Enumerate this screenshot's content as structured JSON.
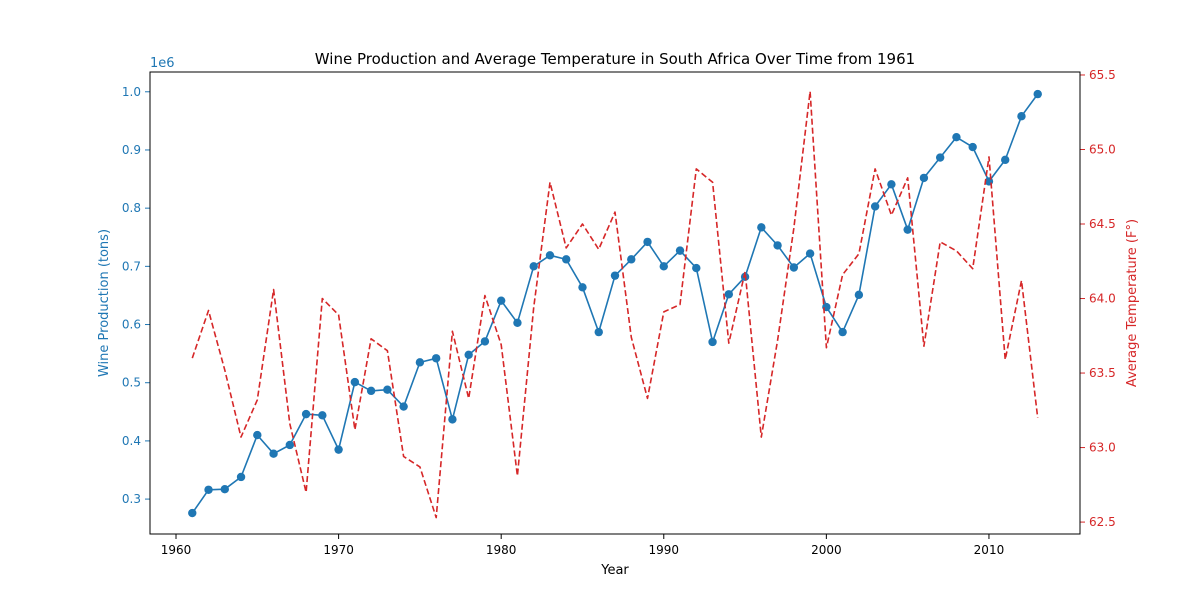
{
  "chart_data": {
    "type": "line",
    "title": "Wine Production and Average Temperature in South Africa Over Time from 1961",
    "xlabel": "Year",
    "ylabel_left": "Wine Production (tons)",
    "ylabel_right": "Average Temperature (F°)",
    "left_offset_text": "1e6",
    "xlim": [
      1958.4,
      2015.6
    ],
    "ylim_left": [
      240000,
      1034000
    ],
    "ylim_right": [
      62.42,
      65.52
    ],
    "x_ticks": [
      1960,
      1970,
      1980,
      1990,
      2000,
      2010
    ],
    "left_ticks": [
      0.3,
      0.4,
      0.5,
      0.6,
      0.7,
      0.8,
      0.9,
      1.0
    ],
    "left_tick_labels": [
      "0.3",
      "0.4",
      "0.5",
      "0.6",
      "0.7",
      "0.8",
      "0.9",
      "1.0"
    ],
    "right_ticks": [
      62.5,
      63.0,
      63.5,
      64.0,
      64.5,
      65.0,
      65.5
    ],
    "right_tick_labels": [
      "62.5",
      "63.0",
      "63.5",
      "64.0",
      "64.5",
      "65.0",
      "65.5"
    ],
    "x": [
      1961,
      1962,
      1963,
      1964,
      1965,
      1966,
      1967,
      1968,
      1969,
      1970,
      1971,
      1972,
      1973,
      1974,
      1975,
      1976,
      1977,
      1978,
      1979,
      1980,
      1981,
      1982,
      1983,
      1984,
      1985,
      1986,
      1987,
      1988,
      1989,
      1990,
      1991,
      1992,
      1993,
      1994,
      1995,
      1996,
      1997,
      1998,
      1999,
      2000,
      2001,
      2002,
      2003,
      2004,
      2005,
      2006,
      2007,
      2008,
      2009,
      2010,
      2011,
      2012,
      2013
    ],
    "series": [
      {
        "axis": "left",
        "color": "#1f77b4",
        "style": "solid-with-markers",
        "values": [
          276000,
          316000,
          317000,
          338000,
          410000,
          378000,
          393000,
          446000,
          444000,
          385000,
          501000,
          486000,
          488000,
          459000,
          535000,
          542000,
          437000,
          548000,
          571000,
          641000,
          603000,
          700000,
          719000,
          712000,
          664000,
          587000,
          684000,
          712000,
          742000,
          700000,
          727000,
          697000,
          570000,
          652000,
          682000,
          767000,
          736000,
          698000,
          722000,
          630000,
          587000,
          651000,
          803000,
          841000,
          763000,
          852000,
          887000,
          922000,
          905000,
          846000,
          883000,
          958000,
          996000
        ]
      },
      {
        "axis": "right",
        "color": "#d62728",
        "style": "dashed",
        "values": [
          63.6,
          63.92,
          63.52,
          63.07,
          63.32,
          64.06,
          63.16,
          62.7,
          64.0,
          63.89,
          63.12,
          63.73,
          63.65,
          62.94,
          62.87,
          62.53,
          63.78,
          63.33,
          64.02,
          63.69,
          62.81,
          63.94,
          64.78,
          64.34,
          64.5,
          64.33,
          64.58,
          63.74,
          63.33,
          63.91,
          63.96,
          64.87,
          64.78,
          63.7,
          64.18,
          63.07,
          63.72,
          64.47,
          65.39,
          63.67,
          64.16,
          64.3,
          64.87,
          64.56,
          64.81,
          63.68,
          64.38,
          64.32,
          64.2,
          64.95,
          63.59,
          64.12,
          63.2
        ]
      }
    ],
    "grid": false,
    "legend": "none"
  },
  "colors": {
    "left_axis": "#1f77b4",
    "right_axis": "#d62728",
    "frame": "#000000"
  }
}
